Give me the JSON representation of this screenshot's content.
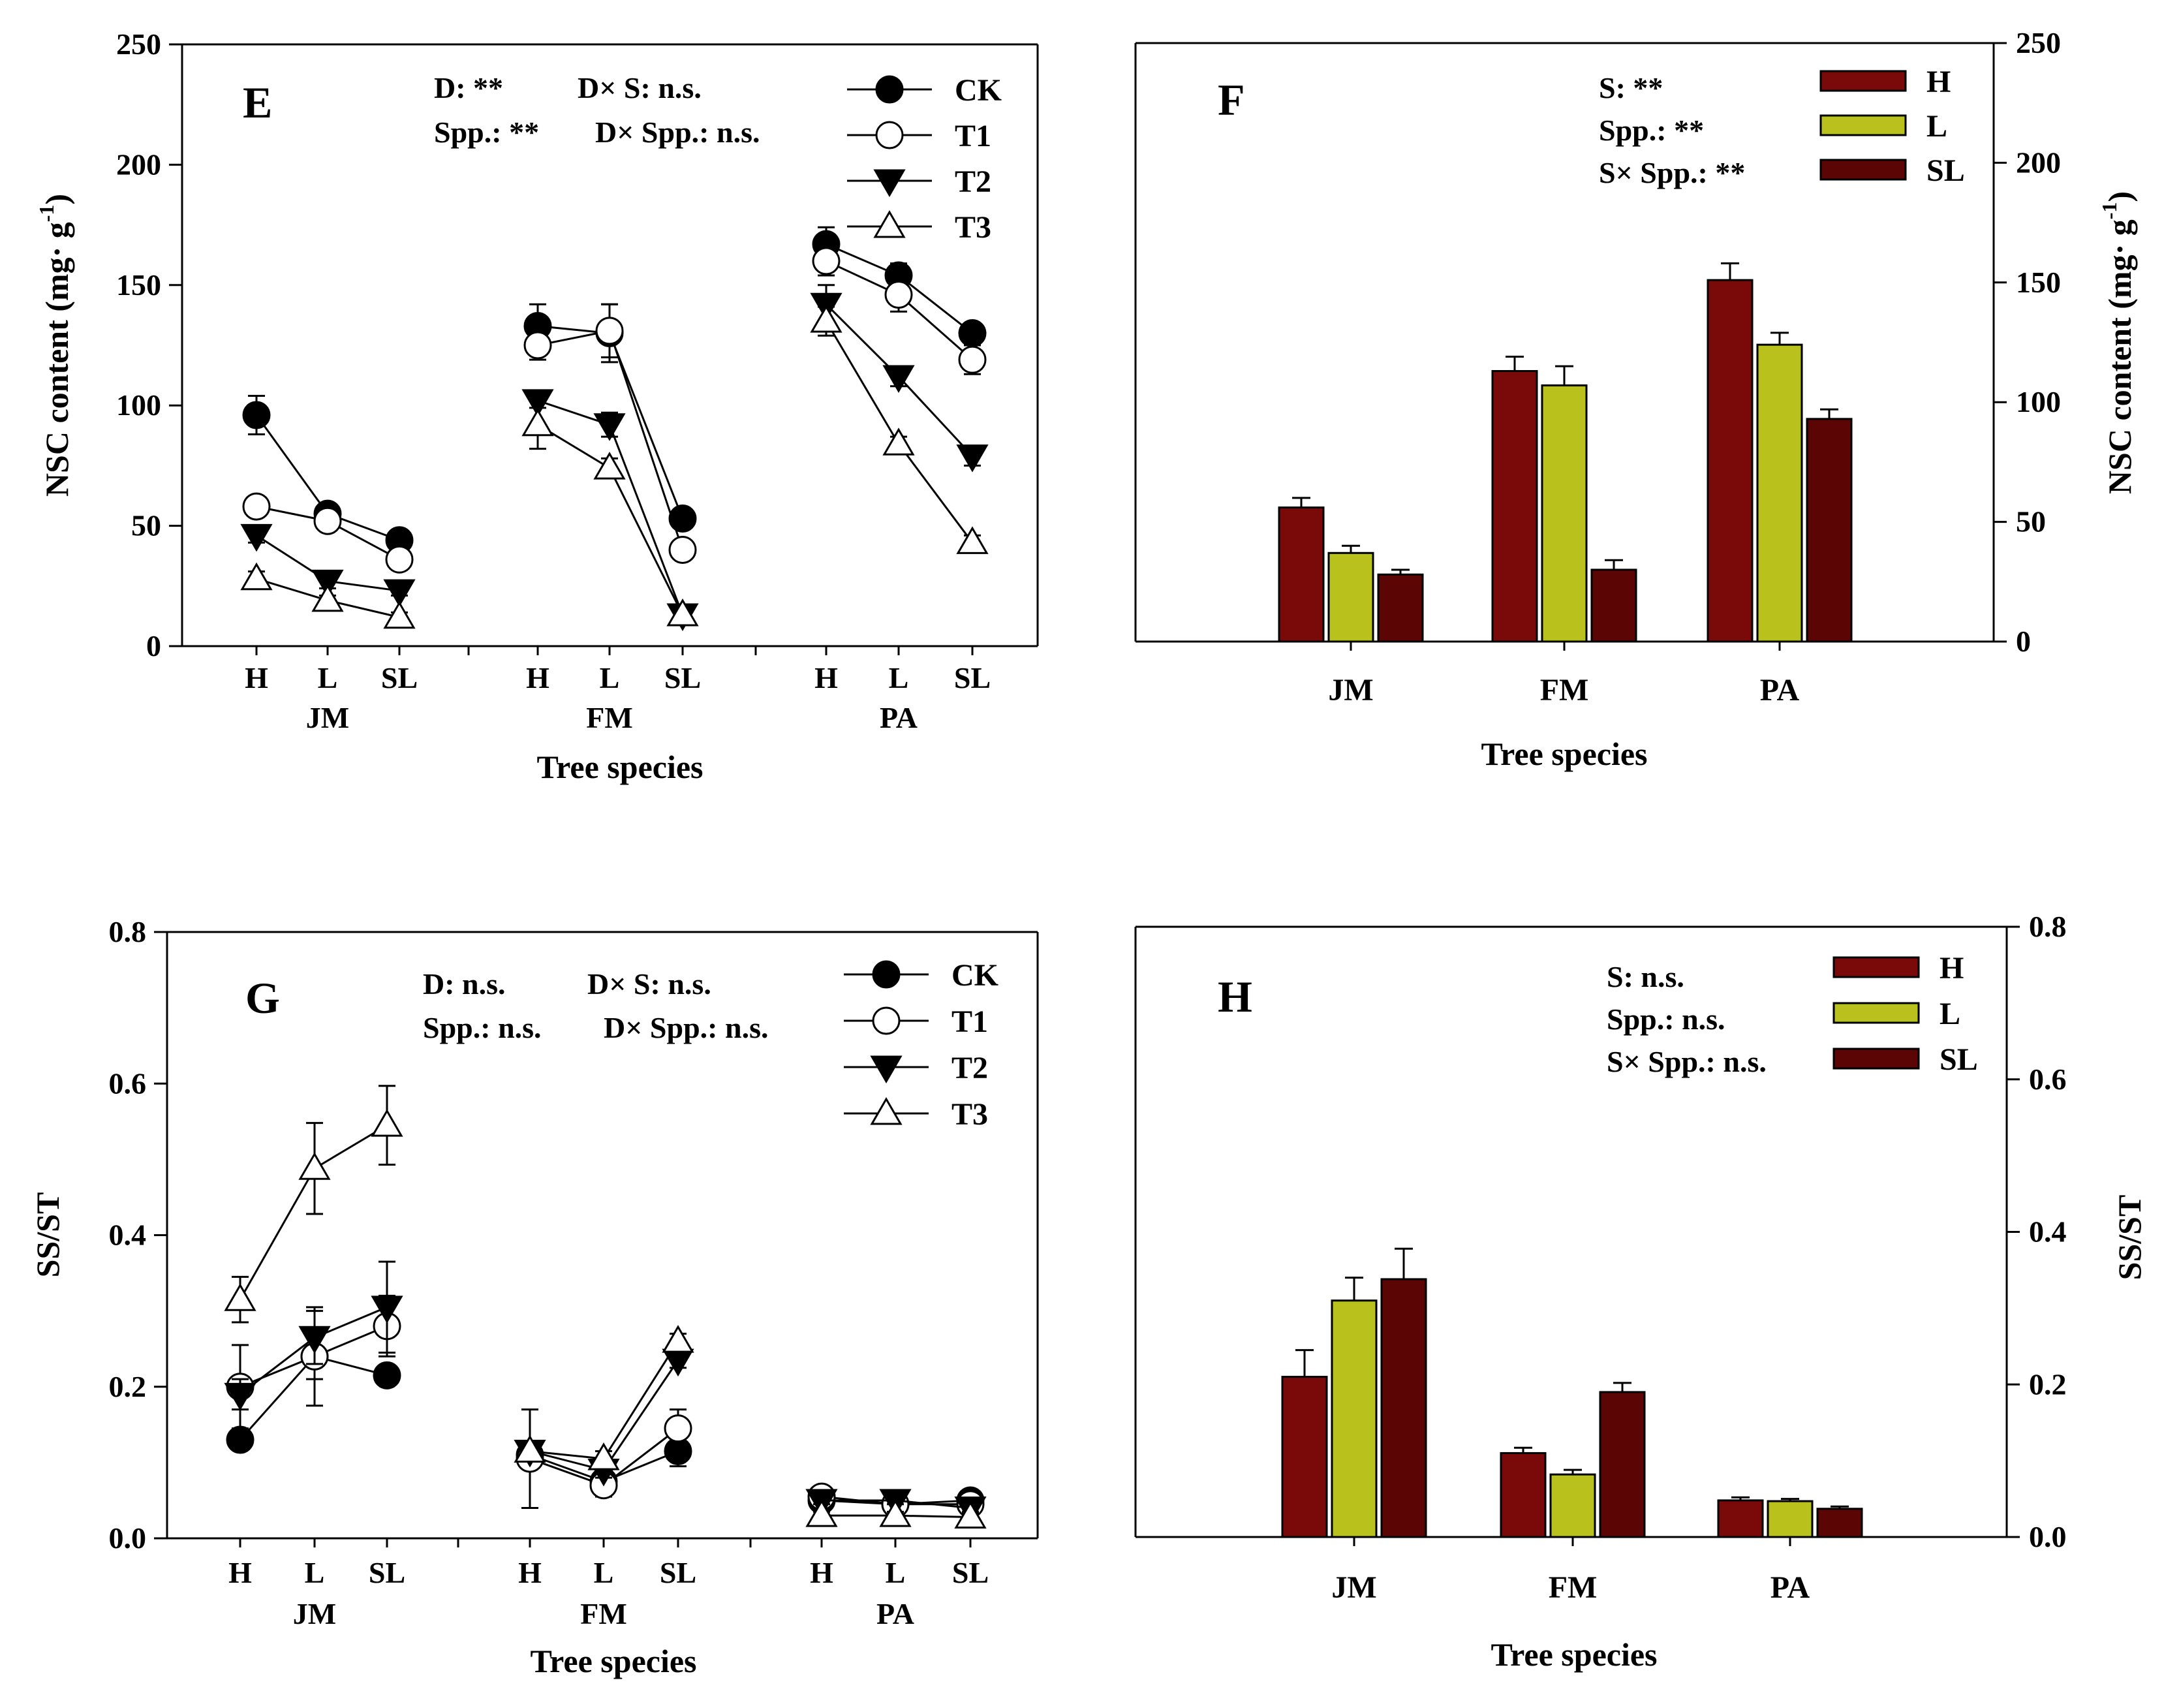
{
  "colors": {
    "H": "#7a0a0a",
    "L": "#b9c21c",
    "SL": "#5c0505",
    "ink": "#000000",
    "background": "#ffffff"
  },
  "chart_data": [
    {
      "panel": "E",
      "type": "line",
      "ylabel": "NSC content (mg· g-1)",
      "xlabel": "Tree species",
      "ylim": [
        0,
        250
      ],
      "yticks": [
        "0",
        "50",
        "100",
        "150",
        "200",
        "250"
      ],
      "groups": [
        "JM",
        "FM",
        "PA"
      ],
      "categories": [
        "H",
        "L",
        "SL"
      ],
      "stats": [
        "D: **",
        "D× S: n.s.",
        "Spp.: **",
        "D× Spp.: n.s."
      ],
      "series": [
        {
          "name": "CK",
          "marker": "circle-filled",
          "values": [
            [
              96,
              55,
              44
            ],
            [
              133,
              130,
              53
            ],
            [
              167,
              154,
              130
            ]
          ],
          "errors": [
            [
              8,
              3,
              3
            ],
            [
              9,
              12,
              4
            ],
            [
              7,
              5,
              4
            ]
          ]
        },
        {
          "name": "T1",
          "marker": "circle-open",
          "values": [
            [
              58,
              52,
              36
            ],
            [
              125,
              131,
              40
            ],
            [
              160,
              146,
              119
            ]
          ],
          "errors": [
            [
              3,
              3,
              3
            ],
            [
              6,
              11,
              3
            ],
            [
              6,
              7,
              6
            ]
          ]
        },
        {
          "name": "T2",
          "marker": "triangle-down-filled",
          "values": [
            [
              46,
              27,
              23
            ],
            [
              102,
              92,
              13
            ],
            [
              142,
              112,
              79
            ]
          ],
          "errors": [
            [
              3,
              3,
              2
            ],
            [
              3,
              5,
              2
            ],
            [
              8,
              4,
              4
            ]
          ]
        },
        {
          "name": "T3",
          "marker": "triangle-up-open",
          "values": [
            [
              28,
              19,
              12
            ],
            [
              92,
              74,
              13
            ],
            [
              135,
              84,
              43
            ]
          ],
          "errors": [
            [
              3,
              2,
              2
            ],
            [
              10,
              4,
              2
            ],
            [
              6,
              3,
              3
            ]
          ]
        }
      ]
    },
    {
      "panel": "F",
      "type": "bar",
      "ylabel": "NSC content (mg· g-1)",
      "xlabel": "Tree species",
      "ylim": [
        0,
        250
      ],
      "yticks": [
        "0",
        "50",
        "100",
        "150",
        "200",
        "250"
      ],
      "categories": [
        "JM",
        "FM",
        "PA"
      ],
      "stats": [
        "S: **",
        "Spp.: **",
        "S× Spp.: **"
      ],
      "series": [
        {
          "name": "H",
          "values": [
            56,
            113,
            151
          ],
          "errors": [
            4,
            6,
            7
          ]
        },
        {
          "name": "L",
          "values": [
            37,
            107,
            124
          ],
          "errors": [
            3,
            8,
            5
          ]
        },
        {
          "name": "SL",
          "values": [
            28,
            30,
            93
          ],
          "errors": [
            2,
            4,
            4
          ]
        }
      ]
    },
    {
      "panel": "G",
      "type": "line",
      "ylabel": "SS/ST",
      "xlabel": "Tree species",
      "ylim": [
        0,
        0.8
      ],
      "yticks": [
        "0.0",
        "0.2",
        "0.4",
        "0.6",
        "0.8"
      ],
      "groups": [
        "JM",
        "FM",
        "PA"
      ],
      "categories": [
        "H",
        "L",
        "SL"
      ],
      "stats": [
        "D: n.s.",
        "D× S: n.s.",
        "Spp.: n.s.",
        "D× Spp.: n.s."
      ],
      "series": [
        {
          "name": "CK",
          "marker": "circle-filled",
          "values": [
            [
              0.13,
              0.24,
              0.215
            ],
            [
              0.11,
              0.075,
              0.115
            ],
            [
              0.05,
              0.045,
              0.05
            ]
          ],
          "errors": [
            [
              0.01,
              0.03,
              0.01
            ],
            [
              0.01,
              0.01,
              0.02
            ],
            [
              0.005,
              0.005,
              0.005
            ]
          ]
        },
        {
          "name": "T1",
          "marker": "circle-open",
          "values": [
            [
              0.2,
              0.24,
              0.28
            ],
            [
              0.105,
              0.07,
              0.145
            ],
            [
              0.055,
              0.045,
              0.045
            ]
          ],
          "errors": [
            [
              0.055,
              0.065,
              0.04
            ],
            [
              0.065,
              0.015,
              0.025
            ],
            [
              0.005,
              0.005,
              0.005
            ]
          ]
        },
        {
          "name": "T2",
          "marker": "triangle-down-filled",
          "values": [
            [
              0.19,
              0.265,
              0.305
            ],
            [
              0.115,
              0.09,
              0.235
            ],
            [
              0.05,
              0.05,
              0.04
            ]
          ],
          "errors": [
            [
              0.02,
              0.035,
              0.06
            ],
            [
              0.01,
              0.01,
              0.01
            ],
            [
              0.005,
              0.005,
              0.005
            ]
          ]
        },
        {
          "name": "T3",
          "marker": "triangle-up-open",
          "values": [
            [
              0.315,
              0.488,
              0.545
            ],
            [
              0.115,
              0.105,
              0.26
            ],
            [
              0.03,
              0.03,
              0.028
            ]
          ],
          "errors": [
            [
              0.03,
              0.06,
              0.052
            ],
            [
              0.01,
              0.01,
              0.01
            ],
            [
              0.005,
              0.005,
              0.005
            ]
          ]
        }
      ]
    },
    {
      "panel": "H",
      "type": "bar",
      "ylabel": "SS/ST",
      "xlabel": "Tree species",
      "ylim": [
        0,
        0.8
      ],
      "yticks": [
        "0.0",
        "0.2",
        "0.4",
        "0.6",
        "0.8"
      ],
      "categories": [
        "JM",
        "FM",
        "PA"
      ],
      "stats": [
        "S: n.s.",
        "Spp.: n.s.",
        "S× Spp.: n.s."
      ],
      "series": [
        {
          "name": "H",
          "values": [
            0.21,
            0.11,
            0.048
          ],
          "errors": [
            0.035,
            0.007,
            0.004
          ]
        },
        {
          "name": "L",
          "values": [
            0.31,
            0.082,
            0.047
          ],
          "errors": [
            0.03,
            0.006,
            0.003
          ]
        },
        {
          "name": "SL",
          "values": [
            0.338,
            0.19,
            0.037
          ],
          "errors": [
            0.04,
            0.012,
            0.003
          ]
        }
      ]
    }
  ]
}
